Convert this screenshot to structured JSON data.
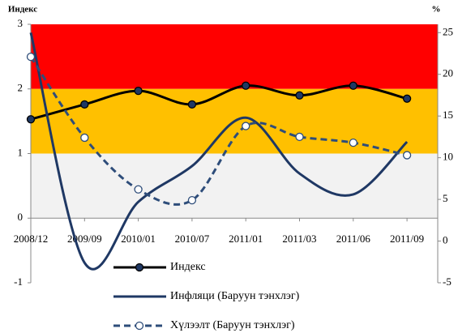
{
  "chart_data": {
    "type": "line",
    "y_label": "Индекс",
    "y2_label": "%",
    "categories": [
      "2008/12",
      "2009/09",
      "2010/01",
      "2010/07",
      "2011/01",
      "2011/03",
      "2011/06",
      "2011/09"
    ],
    "ylim": [
      -1,
      3
    ],
    "yticks": [
      -1,
      0,
      1,
      2,
      3
    ],
    "y2lim": [
      -5,
      26
    ],
    "y2ticks": [
      -5,
      0,
      5,
      10,
      15,
      20,
      25
    ],
    "bands": [
      {
        "from": 2,
        "to": 3,
        "color": "#ff0000"
      },
      {
        "from": 1,
        "to": 2,
        "color": "#ffc000"
      },
      {
        "from": 0,
        "to": 1,
        "color": "#f2f2f2"
      }
    ],
    "series": [
      {
        "name": "Индекс",
        "color": "#000000",
        "marker_color": "#1f3864",
        "values": [
          1.53,
          1.76,
          1.97,
          1.76,
          2.05,
          1.9,
          2.05,
          1.85
        ]
      },
      {
        "name": "Инфляци (Баруун тэнхлэг)",
        "color": "#1f3864",
        "axis": "y2",
        "values": [
          25,
          -2.6,
          4.7,
          9.0,
          14.8,
          8.1,
          5.6,
          11.9
        ]
      },
      {
        "name": "Хүлээлт (Баруун тэнхлэг)",
        "color": "#2e4d7a",
        "axis": "y2",
        "dashed": true,
        "marker_color": "#ffffff",
        "values": [
          22.1,
          12.4,
          6.2,
          4.9,
          13.8,
          12.5,
          11.8,
          10.3
        ]
      }
    ]
  }
}
